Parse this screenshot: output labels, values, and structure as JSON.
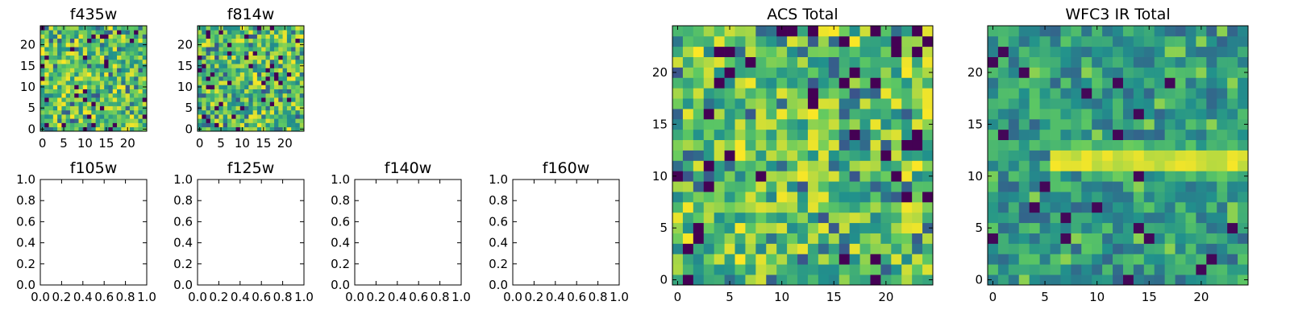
{
  "figure": {
    "colormap": "viridis",
    "colormap_stops": [
      "#440154",
      "#3b528b",
      "#21918c",
      "#5ec962",
      "#fde725"
    ]
  },
  "chart_data": [
    {
      "type": "heatmap",
      "title": "f435w",
      "grid": [
        25,
        25
      ],
      "xlim": [
        -0.5,
        24.5
      ],
      "ylim": [
        -0.5,
        24.5
      ],
      "xticks": [
        0,
        5,
        10,
        15,
        20
      ],
      "yticks": [
        0,
        5,
        10,
        15,
        20
      ],
      "seed": 11,
      "distribution": "noise"
    },
    {
      "type": "heatmap",
      "title": "f814w",
      "grid": [
        25,
        25
      ],
      "xlim": [
        -0.5,
        24.5
      ],
      "ylim": [
        -0.5,
        24.5
      ],
      "xticks": [
        0,
        5,
        10,
        15,
        20
      ],
      "yticks": [
        0,
        5,
        10,
        15,
        20
      ],
      "seed": 23,
      "distribution": "noise"
    },
    {
      "type": "heatmap",
      "title": "ACS Total",
      "grid": [
        25,
        25
      ],
      "xlim": [
        -0.5,
        24.5
      ],
      "ylim": [
        -0.5,
        24.5
      ],
      "xticks": [
        0,
        5,
        10,
        15,
        20
      ],
      "yticks": [
        0,
        5,
        10,
        15,
        20
      ],
      "seed": 37,
      "distribution": "noise"
    },
    {
      "type": "heatmap",
      "title": "WFC3 IR Total",
      "grid": [
        25,
        25
      ],
      "xlim": [
        -0.5,
        24.5
      ],
      "ylim": [
        -0.5,
        24.5
      ],
      "xticks": [
        0,
        5,
        10,
        15,
        20
      ],
      "yticks": [
        0,
        5,
        10,
        15,
        20
      ],
      "seed": 53,
      "distribution": "horizontal-band",
      "band_rows": [
        11,
        12
      ],
      "band_cols": [
        6,
        24
      ]
    },
    {
      "type": "line",
      "title": "f105w",
      "xlim": [
        0,
        1
      ],
      "ylim": [
        0,
        1
      ],
      "xticks": [
        "0.0",
        "0.2",
        "0.4",
        "0.6",
        "0.8",
        "1.0"
      ],
      "yticks": [
        "0.0",
        "0.2",
        "0.4",
        "0.6",
        "0.8",
        "1.0"
      ],
      "series": []
    },
    {
      "type": "line",
      "title": "f125w",
      "xlim": [
        0,
        1
      ],
      "ylim": [
        0,
        1
      ],
      "xticks": [
        "0.0",
        "0.2",
        "0.4",
        "0.6",
        "0.8",
        "1.0"
      ],
      "yticks": [
        "0.0",
        "0.2",
        "0.4",
        "0.6",
        "0.8",
        "1.0"
      ],
      "series": []
    },
    {
      "type": "line",
      "title": "f140w",
      "xlim": [
        0,
        1
      ],
      "ylim": [
        0,
        1
      ],
      "xticks": [
        "0.0",
        "0.2",
        "0.4",
        "0.6",
        "0.8",
        "1.0"
      ],
      "yticks": [
        "0.0",
        "0.2",
        "0.4",
        "0.6",
        "0.8",
        "1.0"
      ],
      "series": []
    },
    {
      "type": "line",
      "title": "f160w",
      "xlim": [
        0,
        1
      ],
      "ylim": [
        0,
        1
      ],
      "xticks": [
        "0.0",
        "0.2",
        "0.4",
        "0.6",
        "0.8",
        "1.0"
      ],
      "yticks": [
        "0.0",
        "0.2",
        "0.4",
        "0.6",
        "0.8",
        "1.0"
      ],
      "series": []
    }
  ]
}
